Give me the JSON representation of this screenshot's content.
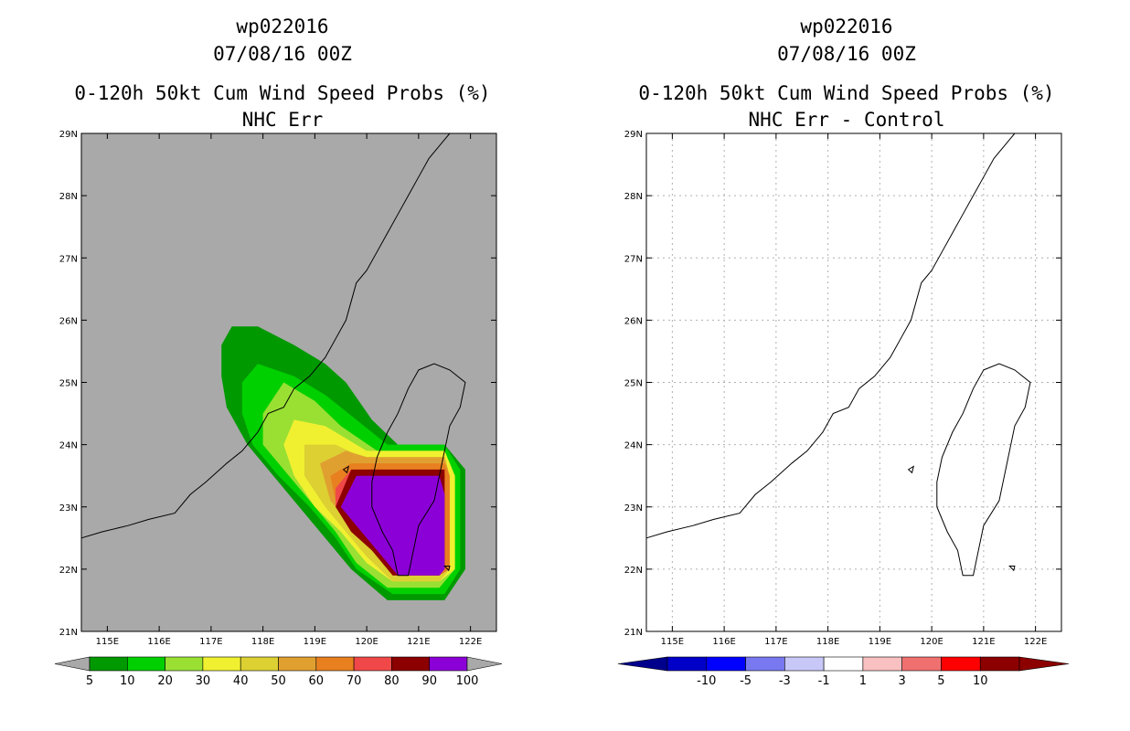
{
  "chart_data": [
    {
      "type": "heatmap",
      "title_lines": [
        "wp022016",
        "07/08/16 00Z",
        "0-120h 50kt Cum Wind Speed Probs (%)",
        "NHC Err"
      ],
      "x_ticks": [
        "115E",
        "116E",
        "117E",
        "118E",
        "119E",
        "120E",
        "121E",
        "122E"
      ],
      "y_ticks": [
        "21N",
        "22N",
        "23N",
        "24N",
        "25N",
        "26N",
        "27N",
        "28N",
        "29N"
      ],
      "xlim": [
        114.5,
        122.5
      ],
      "ylim": [
        21,
        29
      ],
      "background_color": "#a9a9a9",
      "grid": false,
      "colorbar": {
        "levels": [
          "5",
          "10",
          "20",
          "30",
          "40",
          "50",
          "60",
          "70",
          "80",
          "90",
          "100"
        ],
        "colors": [
          "#009900",
          "#00d000",
          "#99e033",
          "#f0f030",
          "#dcd033",
          "#e0a030",
          "#e88020",
          "#f04848",
          "#8c0000",
          "#8c00d8"
        ],
        "end_color": "#a9a9a9"
      },
      "contours": [
        {
          "level": 5,
          "color": "#009900",
          "points": [
            [
              117.4,
              25.9
            ],
            [
              117.9,
              25.9
            ],
            [
              118.6,
              25.6
            ],
            [
              119.2,
              25.3
            ],
            [
              119.6,
              25.0
            ],
            [
              120.1,
              24.4
            ],
            [
              120.6,
              24.0
            ],
            [
              121.5,
              24.0
            ],
            [
              121.9,
              23.6
            ],
            [
              121.9,
              22.0
            ],
            [
              121.5,
              21.5
            ],
            [
              120.4,
              21.5
            ],
            [
              119.7,
              22.0
            ],
            [
              119.3,
              22.4
            ],
            [
              118.8,
              22.9
            ],
            [
              118.2,
              23.5
            ],
            [
              117.7,
              24.0
            ],
            [
              117.3,
              24.6
            ],
            [
              117.2,
              25.1
            ],
            [
              117.2,
              25.6
            ]
          ]
        },
        {
          "level": 10,
          "color": "#00d000",
          "points": [
            [
              117.9,
              25.3
            ],
            [
              118.6,
              25.1
            ],
            [
              119.2,
              24.8
            ],
            [
              119.8,
              24.4
            ],
            [
              120.4,
              24.0
            ],
            [
              121.5,
              24.0
            ],
            [
              121.8,
              23.6
            ],
            [
              121.8,
              22.0
            ],
            [
              121.5,
              21.6
            ],
            [
              120.5,
              21.6
            ],
            [
              119.8,
              22.0
            ],
            [
              119.4,
              22.5
            ],
            [
              118.9,
              23.0
            ],
            [
              118.3,
              23.5
            ],
            [
              117.8,
              24.0
            ],
            [
              117.6,
              24.5
            ],
            [
              117.6,
              25.0
            ]
          ]
        },
        {
          "level": 20,
          "color": "#99e033",
          "points": [
            [
              118.4,
              25.0
            ],
            [
              119.0,
              24.7
            ],
            [
              119.5,
              24.3
            ],
            [
              120.2,
              23.9
            ],
            [
              121.5,
              23.9
            ],
            [
              121.7,
              23.5
            ],
            [
              121.7,
              22.0
            ],
            [
              121.4,
              21.7
            ],
            [
              120.4,
              21.7
            ],
            [
              119.8,
              22.1
            ],
            [
              119.4,
              22.6
            ],
            [
              118.9,
              23.1
            ],
            [
              118.4,
              23.6
            ],
            [
              118.0,
              24.0
            ],
            [
              118.0,
              24.5
            ]
          ]
        },
        {
          "level": 30,
          "color": "#f0f030",
          "points": [
            [
              118.6,
              24.4
            ],
            [
              119.2,
              24.3
            ],
            [
              119.6,
              24.1
            ],
            [
              120.0,
              23.9
            ],
            [
              121.5,
              23.9
            ],
            [
              121.7,
              23.5
            ],
            [
              121.7,
              22.0
            ],
            [
              121.4,
              21.8
            ],
            [
              120.5,
              21.8
            ],
            [
              120.0,
              22.1
            ],
            [
              119.5,
              22.6
            ],
            [
              119.0,
              23.0
            ],
            [
              118.6,
              23.5
            ],
            [
              118.4,
              24.0
            ]
          ]
        },
        {
          "level": 40,
          "color": "#dcd033",
          "points": [
            [
              118.8,
              24.0
            ],
            [
              119.4,
              24.0
            ],
            [
              119.9,
              23.8
            ],
            [
              121.5,
              23.8
            ],
            [
              121.6,
              23.5
            ],
            [
              121.6,
              22.0
            ],
            [
              121.4,
              21.8
            ],
            [
              120.5,
              21.8
            ],
            [
              120.0,
              22.2
            ],
            [
              119.6,
              22.6
            ],
            [
              119.2,
              23.0
            ],
            [
              118.8,
              23.5
            ]
          ]
        },
        {
          "level": 50,
          "color": "#e0a030",
          "points": [
            [
              119.1,
              23.7
            ],
            [
              119.6,
              23.9
            ],
            [
              120.0,
              23.8
            ],
            [
              121.5,
              23.8
            ],
            [
              121.6,
              23.5
            ],
            [
              121.6,
              22.0
            ],
            [
              121.4,
              21.9
            ],
            [
              120.5,
              21.9
            ],
            [
              120.1,
              22.3
            ],
            [
              119.7,
              22.7
            ],
            [
              119.3,
              23.1
            ]
          ]
        },
        {
          "level": 60,
          "color": "#e88020",
          "points": [
            [
              119.3,
              23.5
            ],
            [
              119.7,
              23.7
            ],
            [
              121.5,
              23.7
            ],
            [
              121.6,
              23.5
            ],
            [
              121.6,
              22.0
            ],
            [
              121.4,
              21.9
            ],
            [
              120.6,
              21.9
            ],
            [
              120.2,
              22.3
            ],
            [
              119.8,
              22.7
            ],
            [
              119.4,
              23.1
            ]
          ]
        },
        {
          "level": 70,
          "color": "#f04848",
          "points": [
            [
              119.4,
              23.3
            ],
            [
              119.7,
              23.6
            ],
            [
              121.5,
              23.6
            ],
            [
              121.5,
              22.0
            ],
            [
              121.4,
              21.9
            ],
            [
              120.6,
              21.9
            ],
            [
              120.2,
              22.3
            ],
            [
              119.8,
              22.7
            ],
            [
              119.4,
              23.0
            ]
          ]
        },
        {
          "level": 80,
          "color": "#8c0000",
          "points": [
            [
              119.4,
              23.0
            ],
            [
              119.7,
              23.6
            ],
            [
              121.5,
              23.6
            ],
            [
              121.5,
              22.0
            ],
            [
              121.4,
              21.9
            ],
            [
              120.5,
              21.9
            ],
            [
              120.1,
              22.3
            ],
            [
              119.7,
              22.6
            ]
          ]
        },
        {
          "level": 90,
          "color": "#8c00d8",
          "points": [
            [
              119.5,
              23.0
            ],
            [
              119.8,
              23.5
            ],
            [
              121.4,
              23.5
            ],
            [
              121.5,
              23.2
            ],
            [
              121.5,
              22.0
            ],
            [
              121.4,
              21.9
            ],
            [
              120.6,
              21.9
            ],
            [
              120.2,
              22.3
            ],
            [
              119.8,
              22.7
            ]
          ]
        }
      ]
    },
    {
      "type": "heatmap",
      "title_lines": [
        "wp022016",
        "07/08/16 00Z",
        "0-120h 50kt Cum Wind Speed Probs (%)",
        "NHC Err - Control"
      ],
      "x_ticks": [
        "115E",
        "116E",
        "117E",
        "118E",
        "119E",
        "120E",
        "121E",
        "122E"
      ],
      "y_ticks": [
        "21N",
        "22N",
        "23N",
        "24N",
        "25N",
        "26N",
        "27N",
        "28N",
        "29N"
      ],
      "xlim": [
        114.5,
        122.5
      ],
      "ylim": [
        21,
        29
      ],
      "background_color": "#ffffff",
      "grid": true,
      "colorbar": {
        "levels": [
          "-10",
          "-5",
          "-3",
          "-1",
          "1",
          "3",
          "5",
          "10"
        ],
        "colors": [
          "#0000c8",
          "#0000ff",
          "#7878f0",
          "#c8c8f8",
          "#ffffff",
          "#f8c0c0",
          "#f07070",
          "#ff0000",
          "#8c0000"
        ],
        "end_color_low": "#00008c",
        "end_color_high": "#8c0000"
      },
      "contours": []
    }
  ]
}
